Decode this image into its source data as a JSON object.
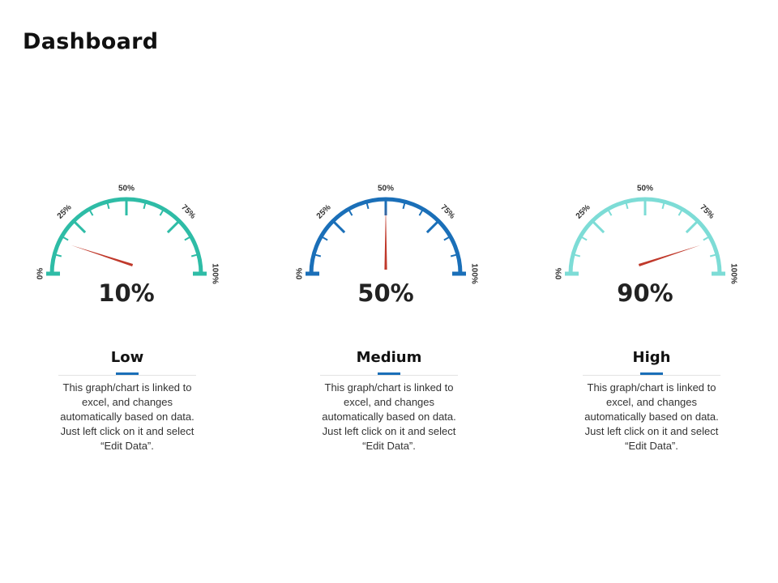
{
  "title": "Dashboard",
  "chart_data": [
    {
      "type": "gauge",
      "value": 10,
      "value_label": "10%",
      "range": [
        0,
        100
      ],
      "tick_labels": [
        "0%",
        "25%",
        "50%",
        "75%",
        "100%"
      ],
      "category": "Low",
      "description": "This graph/chart is linked to excel, and changes automatically based on data. Just left click on it and select “Edit Data”.",
      "arc_color": "#2ebca6",
      "needle_color": "#c0392b"
    },
    {
      "type": "gauge",
      "value": 50,
      "value_label": "50%",
      "range": [
        0,
        100
      ],
      "tick_labels": [
        "0%",
        "25%",
        "50%",
        "75%",
        "100%"
      ],
      "category": "Medium",
      "description": "This graph/chart is linked to excel, and changes automatically based on data. Just left click on it and select “Edit Data”.",
      "arc_color": "#1a6fb8",
      "needle_color": "#c0392b"
    },
    {
      "type": "gauge",
      "value": 90,
      "value_label": "90%",
      "range": [
        0,
        100
      ],
      "tick_labels": [
        "0%",
        "25%",
        "50%",
        "75%",
        "100%"
      ],
      "category": "High",
      "description": "This graph/chart is linked to excel, and changes automatically based on data. Just left click on it and select “Edit Data”.",
      "arc_color": "#7ddcd6",
      "needle_color": "#c0392b"
    }
  ],
  "card_accent_color": "#1a6fb8"
}
